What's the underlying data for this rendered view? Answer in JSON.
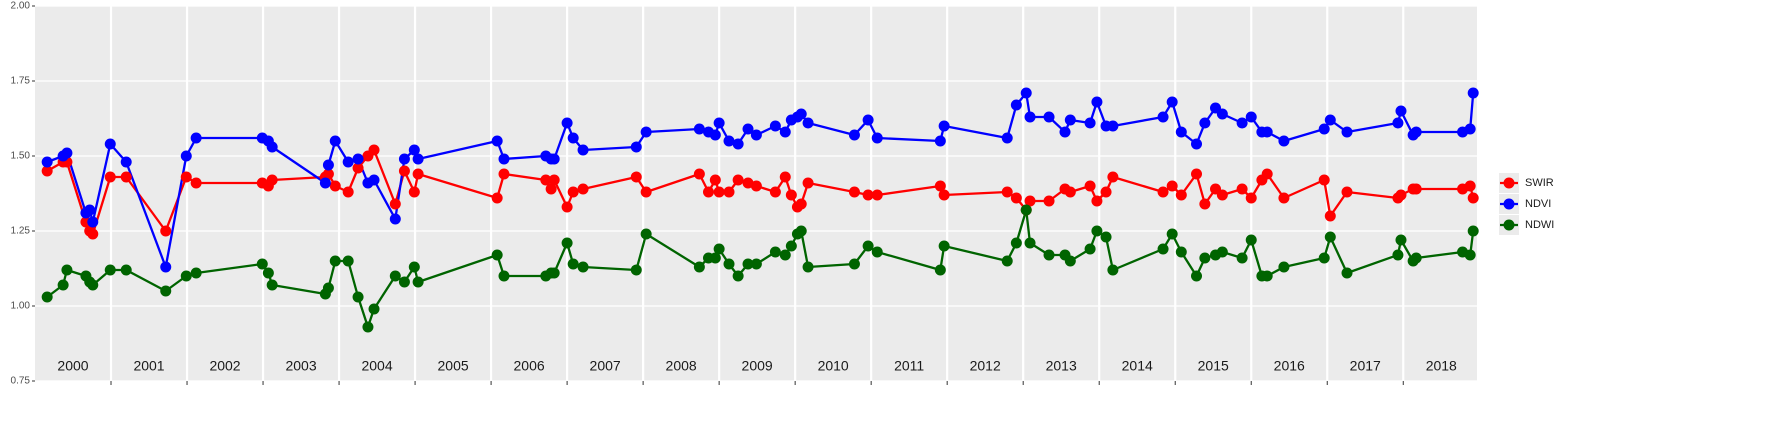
{
  "chart_data": {
    "type": "line",
    "x": [
      2000.16,
      2000.37,
      2000.42,
      2000.67,
      2000.72,
      2000.76,
      2000.99,
      2001.2,
      2001.72,
      2001.99,
      2002.12,
      2002.99,
      2003.07,
      2003.12,
      2003.82,
      2003.86,
      2003.95,
      2004.12,
      2004.25,
      2004.38,
      2004.46,
      2004.74,
      2004.86,
      2004.99,
      2005.04,
      2006.08,
      2006.17,
      2006.72,
      2006.79,
      2006.83,
      2007.0,
      2007.08,
      2007.21,
      2007.91,
      2008.04,
      2008.74,
      2008.86,
      2008.95,
      2009.0,
      2009.13,
      2009.25,
      2009.38,
      2009.49,
      2009.74,
      2009.87,
      2009.95,
      2010.03,
      2010.08,
      2010.17,
      2010.78,
      2010.96,
      2011.08,
      2011.91,
      2011.96,
      2012.79,
      2012.91,
      2013.04,
      2013.09,
      2013.34,
      2013.55,
      2013.62,
      2013.88,
      2013.97,
      2014.09,
      2014.18,
      2014.84,
      2014.96,
      2015.08,
      2015.28,
      2015.39,
      2015.53,
      2015.62,
      2015.88,
      2016.0,
      2016.14,
      2016.21,
      2016.43,
      2016.96,
      2017.04,
      2017.26,
      2017.93,
      2017.97,
      2018.13,
      2018.17,
      2018.78,
      2018.88,
      2018.92
    ],
    "series": [
      {
        "name": "SWIR",
        "color": "#ff0000",
        "values": [
          1.45,
          1.48,
          1.48,
          1.28,
          1.25,
          1.24,
          1.43,
          1.43,
          1.25,
          1.43,
          1.41,
          1.41,
          1.4,
          1.42,
          1.43,
          1.44,
          1.4,
          1.38,
          1.46,
          1.5,
          1.52,
          1.34,
          1.45,
          1.38,
          1.44,
          1.36,
          1.44,
          1.42,
          1.39,
          1.42,
          1.33,
          1.38,
          1.39,
          1.43,
          1.38,
          1.44,
          1.38,
          1.42,
          1.38,
          1.38,
          1.42,
          1.41,
          1.4,
          1.38,
          1.43,
          1.37,
          1.33,
          1.34,
          1.41,
          1.38,
          1.37,
          1.37,
          1.4,
          1.37,
          1.38,
          1.36,
          1.32,
          1.35,
          1.35,
          1.39,
          1.38,
          1.4,
          1.35,
          1.38,
          1.43,
          1.38,
          1.4,
          1.37,
          1.44,
          1.34,
          1.39,
          1.37,
          1.39,
          1.36,
          1.42,
          1.44,
          1.36,
          1.42,
          1.3,
          1.38,
          1.36,
          1.37,
          1.39,
          1.39,
          1.39,
          1.4,
          1.36
        ]
      },
      {
        "name": "NDVI",
        "color": "#0000ff",
        "values": [
          1.48,
          1.5,
          1.51,
          1.31,
          1.32,
          1.28,
          1.54,
          1.48,
          1.13,
          1.5,
          1.56,
          1.56,
          1.55,
          1.53,
          1.41,
          1.47,
          1.55,
          1.48,
          1.49,
          1.41,
          1.42,
          1.29,
          1.49,
          1.52,
          1.49,
          1.55,
          1.49,
          1.5,
          1.49,
          1.49,
          1.61,
          1.56,
          1.52,
          1.53,
          1.58,
          1.59,
          1.58,
          1.57,
          1.61,
          1.55,
          1.54,
          1.59,
          1.57,
          1.6,
          1.58,
          1.62,
          1.63,
          1.64,
          1.61,
          1.57,
          1.62,
          1.56,
          1.55,
          1.6,
          1.56,
          1.67,
          1.71,
          1.63,
          1.63,
          1.58,
          1.62,
          1.61,
          1.68,
          1.6,
          1.6,
          1.63,
          1.68,
          1.58,
          1.54,
          1.61,
          1.66,
          1.64,
          1.61,
          1.63,
          1.58,
          1.58,
          1.55,
          1.59,
          1.62,
          1.58,
          1.61,
          1.65,
          1.57,
          1.58,
          1.58,
          1.59,
          1.71
        ]
      },
      {
        "name": "NDWI",
        "color": "#006400",
        "values": [
          1.03,
          1.07,
          1.12,
          1.1,
          1.08,
          1.07,
          1.12,
          1.12,
          1.05,
          1.1,
          1.11,
          1.14,
          1.11,
          1.07,
          1.04,
          1.06,
          1.15,
          1.15,
          1.03,
          0.93,
          0.99,
          1.1,
          1.08,
          1.13,
          1.08,
          1.17,
          1.1,
          1.1,
          1.11,
          1.11,
          1.21,
          1.14,
          1.13,
          1.12,
          1.24,
          1.13,
          1.16,
          1.16,
          1.19,
          1.14,
          1.1,
          1.14,
          1.14,
          1.18,
          1.17,
          1.2,
          1.24,
          1.25,
          1.13,
          1.14,
          1.2,
          1.18,
          1.12,
          1.2,
          1.15,
          1.21,
          1.32,
          1.21,
          1.17,
          1.17,
          1.15,
          1.19,
          1.25,
          1.23,
          1.12,
          1.19,
          1.24,
          1.18,
          1.1,
          1.16,
          1.17,
          1.18,
          1.16,
          1.22,
          1.1,
          1.1,
          1.13,
          1.16,
          1.23,
          1.11,
          1.17,
          1.22,
          1.15,
          1.16,
          1.18,
          1.17,
          1.25
        ]
      }
    ],
    "xlim": [
      2000,
      2018.97
    ],
    "xticks": [
      {
        "value": 2000.5,
        "label": "2000"
      },
      {
        "value": 2001.5,
        "label": "2001"
      },
      {
        "value": 2002.5,
        "label": "2002"
      },
      {
        "value": 2003.5,
        "label": "2003"
      },
      {
        "value": 2004.5,
        "label": "2004"
      },
      {
        "value": 2005.5,
        "label": "2005"
      },
      {
        "value": 2006.5,
        "label": "2006"
      },
      {
        "value": 2007.5,
        "label": "2007"
      },
      {
        "value": 2008.5,
        "label": "2008"
      },
      {
        "value": 2009.5,
        "label": "2009"
      },
      {
        "value": 2010.5,
        "label": "2010"
      },
      {
        "value": 2011.5,
        "label": "2011"
      },
      {
        "value": 2012.5,
        "label": "2012"
      },
      {
        "value": 2013.5,
        "label": "2013"
      },
      {
        "value": 2014.5,
        "label": "2014"
      },
      {
        "value": 2015.5,
        "label": "2015"
      },
      {
        "value": 2016.5,
        "label": "2016"
      },
      {
        "value": 2017.5,
        "label": "2017"
      },
      {
        "value": 2018.5,
        "label": "2018"
      }
    ],
    "xgrid": [
      2001,
      2002,
      2003,
      2004,
      2005,
      2006,
      2007,
      2008,
      2009,
      2010,
      2011,
      2012,
      2013,
      2014,
      2015,
      2016,
      2017,
      2018
    ],
    "ylim": [
      0.75,
      2.0
    ],
    "yticks": [
      0.75,
      {
        "value": 1.0,
        "label": "1.00"
      },
      1.25,
      {
        "value": 1.5,
        "label": "1.50"
      },
      1.75,
      {
        "value": 2.0,
        "label": "2.00"
      }
    ],
    "grid": true,
    "legend": "right"
  }
}
